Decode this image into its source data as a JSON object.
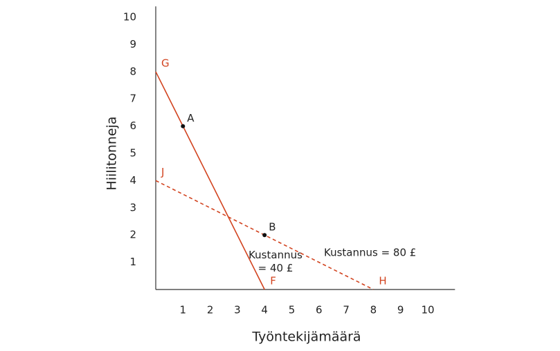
{
  "chart_data": {
    "type": "line",
    "x_label": "Työntekijämäärä",
    "y_label": "Hiilitonneja",
    "xlim": [
      0,
      11
    ],
    "ylim": [
      0,
      10.4
    ],
    "xticks": [
      1,
      2,
      3,
      4,
      5,
      6,
      7,
      8,
      9,
      10
    ],
    "yticks": [
      1,
      2,
      3,
      4,
      5,
      6,
      7,
      8,
      9,
      10
    ],
    "grid": false,
    "series": [
      {
        "name": "Kustannus = 40 £",
        "color": "#d2431f",
        "style": "solid",
        "x": [
          0,
          4
        ],
        "values": [
          8,
          0
        ],
        "point_labels": [
          "G",
          "F"
        ]
      },
      {
        "name": "Kustannus = 80 £",
        "color": "#d2431f",
        "style": "dashed",
        "x": [
          0,
          8
        ],
        "values": [
          4,
          0
        ],
        "point_labels": [
          "J",
          "H"
        ]
      }
    ],
    "points": [
      {
        "label": "A",
        "x": 1,
        "y": 6
      },
      {
        "label": "B",
        "x": 4,
        "y": 2
      }
    ]
  }
}
